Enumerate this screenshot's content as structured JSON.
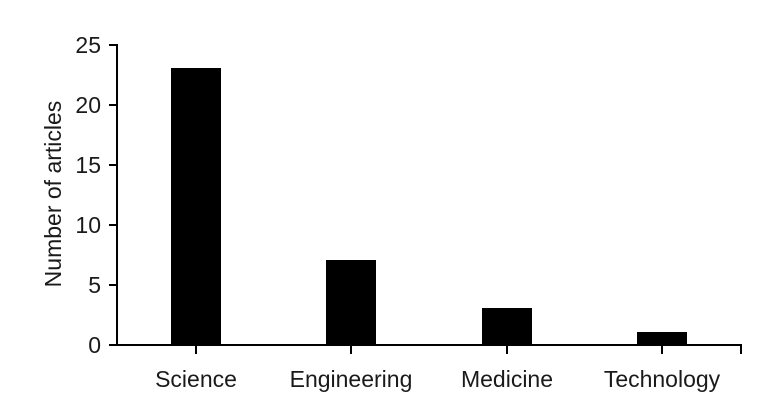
{
  "chart_data": {
    "type": "bar",
    "title": "",
    "categories": [
      "Science",
      "Engineering",
      "Medicine",
      "Technology"
    ],
    "values": [
      23,
      7,
      3,
      1
    ],
    "series_name": "Number of articles",
    "xlabel": "",
    "ylabel": "Number of articles",
    "ylim": [
      0,
      25
    ],
    "yticks": [
      0,
      5,
      10,
      15,
      20,
      25
    ],
    "grid": "off",
    "legend": "none",
    "bar_color": "#000000",
    "axis_color": "#000000",
    "text_color": "#1a1a1a"
  }
}
